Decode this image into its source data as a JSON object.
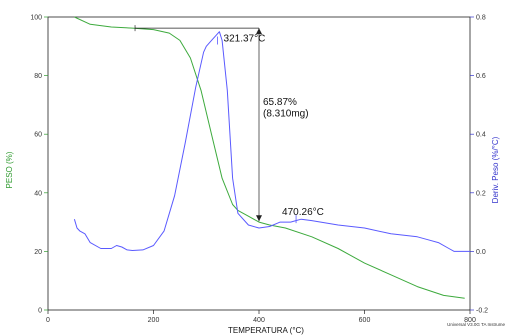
{
  "chart_data": {
    "type": "line",
    "title": "",
    "xlabel": "TEMPERATURA (°C)",
    "ylabel_left": "PESO (%)",
    "ylabel_right": "Deriv. Peso (%/°C)",
    "xlim": [
      0,
      800
    ],
    "ylim_left": [
      0,
      100
    ],
    "ylim_right": [
      -0.2,
      0.8
    ],
    "x_ticks": [
      "0",
      "200",
      "400",
      "600",
      "800"
    ],
    "y_ticks_left": [
      "0",
      "20",
      "40",
      "60",
      "80",
      "100"
    ],
    "y_ticks_right": [
      "-0.2",
      "0.0",
      "0.2",
      "0.4",
      "0.6",
      "0.8"
    ],
    "colors": {
      "weight": "#3daa3d",
      "derivative": "#5a5aff",
      "axis_right": "#3333cc",
      "axis_left": "#2e9a2e"
    },
    "grid": false,
    "series": [
      {
        "axis": "left",
        "color": "#3daa3d",
        "x": [
          50,
          80,
          120,
          160,
          200,
          230,
          250,
          270,
          290,
          310,
          330,
          350,
          360,
          380,
          400,
          420,
          450,
          500,
          550,
          600,
          650,
          700,
          750,
          790
        ],
        "y": [
          100,
          97.5,
          96.6,
          96.2,
          95.7,
          94.5,
          92,
          86,
          75,
          60,
          45,
          36,
          34,
          32,
          30,
          29,
          28,
          25,
          21,
          16,
          12,
          8,
          5,
          4
        ]
      },
      {
        "axis": "right",
        "color": "#5a5aff",
        "x": [
          50,
          55,
          60,
          70,
          80,
          100,
          120,
          130,
          140,
          150,
          160,
          180,
          200,
          220,
          240,
          260,
          280,
          295,
          300,
          310,
          320,
          325,
          330,
          340,
          350,
          360,
          380,
          400,
          420,
          440,
          460,
          470,
          480,
          500,
          550,
          600,
          650,
          700,
          720,
          740,
          760,
          770,
          790,
          800
        ],
        "y": [
          0.11,
          0.08,
          0.07,
          0.06,
          0.03,
          0.01,
          0.01,
          0.02,
          0.015,
          0.005,
          0.003,
          0.005,
          0.02,
          0.07,
          0.19,
          0.37,
          0.56,
          0.68,
          0.7,
          0.72,
          0.74,
          0.75,
          0.72,
          0.55,
          0.25,
          0.13,
          0.09,
          0.08,
          0.085,
          0.1,
          0.1,
          0.105,
          0.11,
          0.105,
          0.09,
          0.08,
          0.06,
          0.05,
          0.04,
          0.03,
          0.01,
          0.0,
          0.0,
          0.0
        ]
      }
    ],
    "annotations": [
      {
        "text": "321.37°C",
        "x": 321.37,
        "y": 92
      },
      {
        "text": "65.87%",
        "x": 400,
        "y": 70
      },
      {
        "text": "(8.310mg)",
        "x": 400,
        "y": 66
      },
      {
        "text": "470.26°C",
        "x": 470.26,
        "y": 31
      }
    ],
    "step": {
      "x_top": 165,
      "x_bottom": 400,
      "y_top": 96.2,
      "y_bottom": 30.3
    },
    "peak_marker": {
      "x": 321.37,
      "y": 92
    },
    "onset_marker": {
      "x": 470.26,
      "y": 31
    },
    "instrument_label": "Universal V3.0G TA Instrume"
  }
}
